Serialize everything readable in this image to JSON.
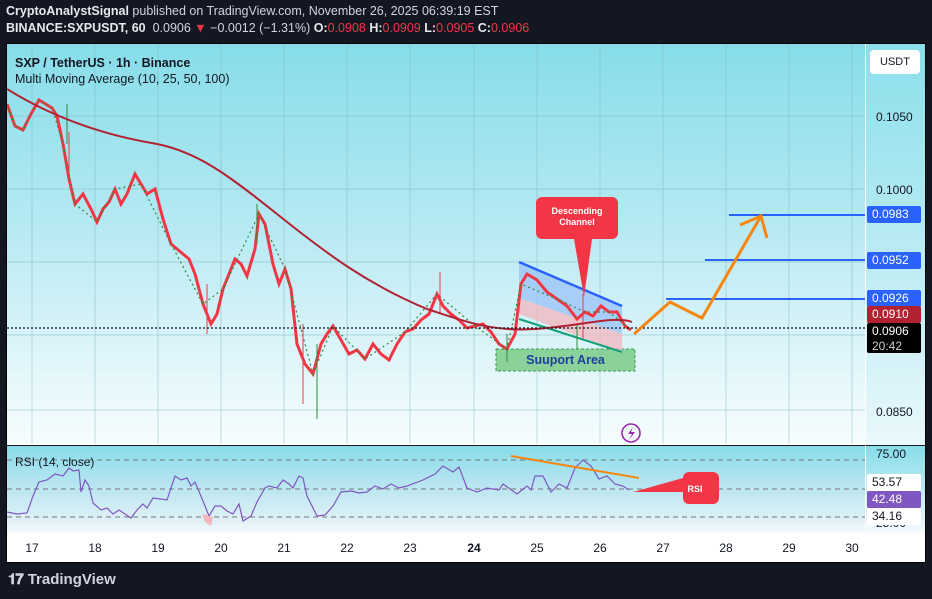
{
  "header": {
    "author": "CryptoAnalystSignal",
    "published_text": "published on TradingView.com, November 26, 2025 06:39:19 EST",
    "symbol": "BINANCE:SXPUSDT, 60",
    "last": "0.0906",
    "change": "−0.0012 (−1.31%)",
    "o_label": "O:",
    "o": "0.0908",
    "h_label": "H:",
    "h": "0.0909",
    "l_label": "L:",
    "l": "0.0905",
    "c_label": "C:",
    "c": "0.0906"
  },
  "chart": {
    "title": "SXP / TetherUS · 1h · Binance",
    "indicator": "Multi Moving Average (10, 25, 50, 100)",
    "currency": "USDT",
    "rsi_title": "RSI (14, close)",
    "countdown": "20:42",
    "annotations": {
      "channel": "Descending Channel",
      "support": "Suuport Area",
      "rsi": "RSI"
    }
  },
  "price_axis": {
    "ticks": [
      "0.1050",
      "0.1000",
      "0.0850"
    ],
    "badges": {
      "t1": "0.0983",
      "t2": "0.0952",
      "t3": "0.0926",
      "ma": "0.0910",
      "last": "0.0906"
    }
  },
  "rsi_axis": {
    "upper": "75.00",
    "a": "53.57",
    "value": "42.48",
    "b": "34.16",
    "lower": "25.00"
  },
  "time_axis": [
    "17",
    "18",
    "19",
    "20",
    "21",
    "22",
    "23",
    "24",
    "25",
    "26",
    "27",
    "28",
    "29",
    "30"
  ],
  "footer": {
    "brand": "TradingView"
  },
  "colors": {
    "up": "#2e8b3a",
    "down": "#f23645",
    "ma": "#b22233",
    "target": "#2962ff",
    "arrow": "#f7860f",
    "rsi": "#7e57c2"
  },
  "chart_data": {
    "type": "candlestick",
    "title": "SXP / TetherUS · 1h · Binance",
    "xlabel": "",
    "ylabel": "USDT",
    "x": [
      "17",
      "18",
      "19",
      "20",
      "21",
      "22",
      "23",
      "24",
      "25",
      "26",
      "27",
      "28",
      "29",
      "30"
    ],
    "ylim": [
      0.083,
      0.111
    ],
    "approx_close_by_day": [
      0.101,
      0.099,
      0.096,
      0.093,
      0.088,
      0.0895,
      0.0915,
      0.09,
      0.0935,
      0.0915,
      null,
      null,
      null,
      null
    ],
    "series": [
      {
        "name": "MA (100)",
        "values": [
          0.1035,
          0.101,
          0.099,
          0.0975,
          0.095,
          0.093,
          0.0915,
          0.091,
          0.0908,
          0.091
        ]
      },
      {
        "name": "Targets",
        "values": [
          0.0926,
          0.0952,
          0.0983
        ]
      }
    ],
    "last_price": 0.0906,
    "rsi": {
      "value": 42.48,
      "levels": [
        75.0,
        53.57,
        34.16,
        25.0
      ]
    },
    "annotations": [
      "Descending Channel",
      "Suuport Area",
      "RSI"
    ],
    "grid": true
  }
}
